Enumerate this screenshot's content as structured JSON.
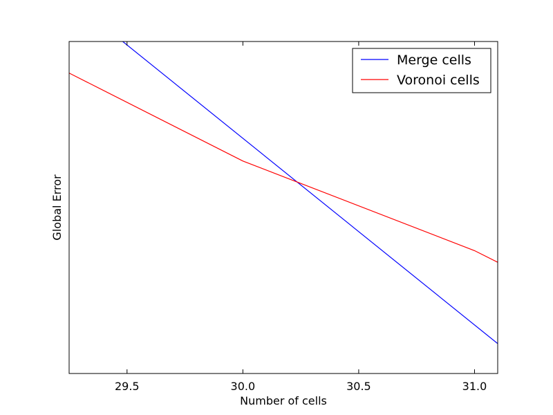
{
  "chart_data": {
    "type": "line",
    "title": "",
    "xlabel": "Number of cells",
    "ylabel": "Global Error",
    "xlim": [
      29.25,
      31.1
    ],
    "ylim": [
      0,
      1
    ],
    "xticks": [
      29.5,
      30.0,
      30.5,
      31.0
    ],
    "xtick_labels": [
      "29.5",
      "30.0",
      "30.5",
      "31.0"
    ],
    "yticks_shown": false,
    "grid": false,
    "legend_position": "top-right",
    "series": [
      {
        "name": "Merge cells",
        "color": "#0000ff",
        "x": [
          29.25,
          31.1
        ],
        "y": [
          1.13,
          0.09
        ]
      },
      {
        "name": "Voronoi cells",
        "color": "#ff0000",
        "x": [
          29.25,
          30.0,
          31.0,
          31.1
        ],
        "y": [
          0.905,
          0.64,
          0.37,
          0.335
        ]
      }
    ]
  }
}
